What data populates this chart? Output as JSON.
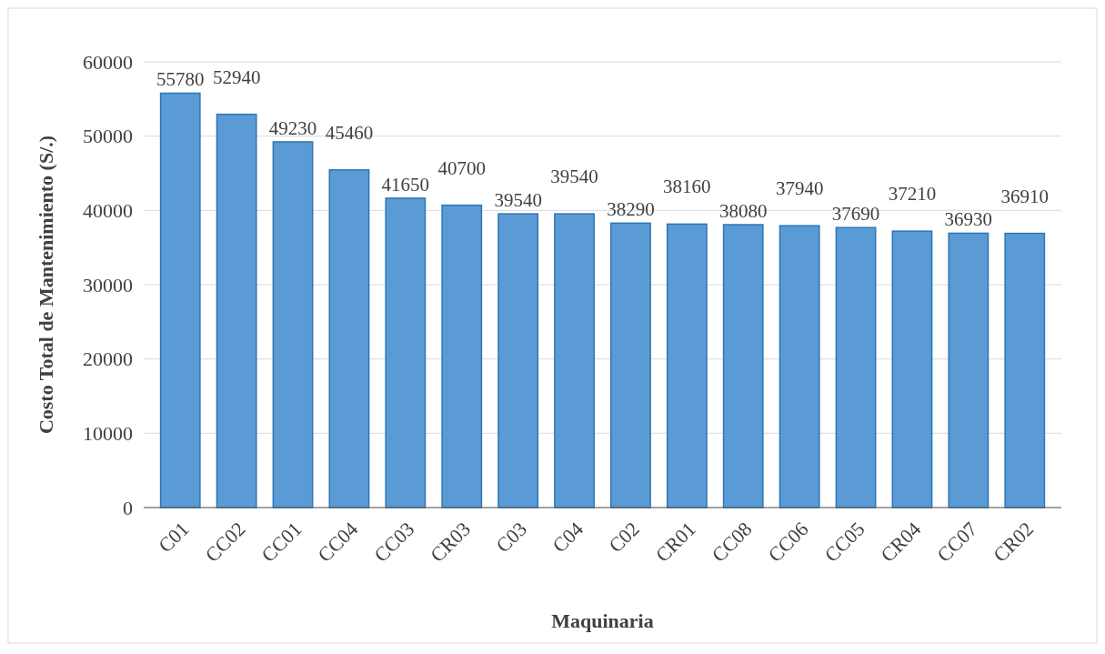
{
  "chart_data": {
    "type": "bar",
    "xlabel": "Maquinaria",
    "ylabel": "Costo Total de Mantenimiento (S/.)",
    "categories": [
      "C01",
      "CC02",
      "CC01",
      "CC04",
      "CC03",
      "CR03",
      "C03",
      "C04",
      "C02",
      "CR01",
      "CC08",
      "CC06",
      "CC05",
      "CR04",
      "CC07",
      "CR02"
    ],
    "values": [
      55780,
      52940,
      49230,
      45460,
      41650,
      40700,
      39540,
      39540,
      38290,
      38160,
      38080,
      37940,
      37690,
      37210,
      36930,
      36910
    ],
    "color": "#5b9bd5",
    "ylim": [
      0,
      60000
    ],
    "yticks": [
      0,
      10000,
      20000,
      30000,
      40000,
      50000,
      60000
    ],
    "grid": "y",
    "data_labels": true
  }
}
